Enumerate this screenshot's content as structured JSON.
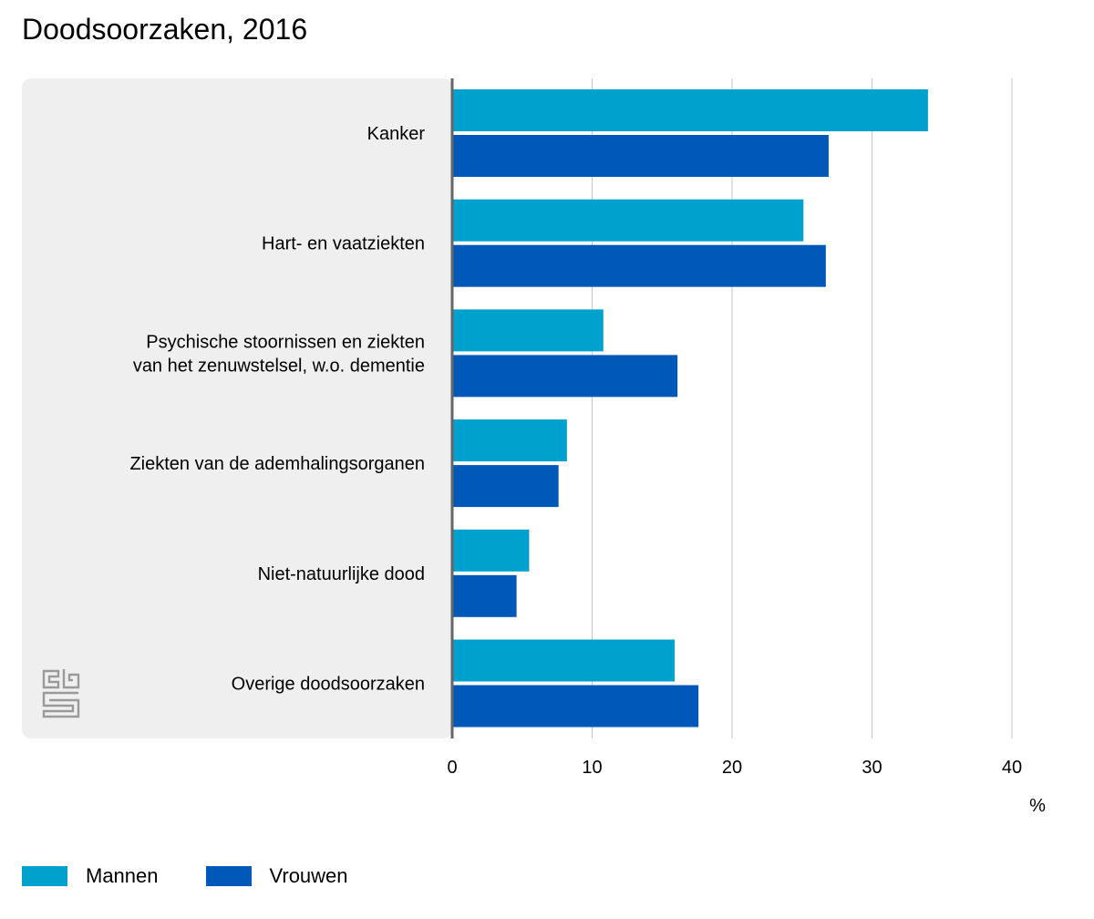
{
  "chart_data": {
    "type": "bar",
    "orientation": "horizontal",
    "title": "Doodsoorzaken, 2016",
    "xlabel": "%",
    "ylabel": "",
    "xlim": [
      0,
      40
    ],
    "xticks": [
      0,
      10,
      20,
      30,
      40
    ],
    "grid": true,
    "legend_position": "bottom-left",
    "categories": [
      "Kanker",
      "Hart- en vaatziekten",
      "Psychische stoornissen en ziekten van het zenuwstelsel, w.o. dementie",
      "Ziekten van de ademhalingsorganen",
      "Niet-natuurlijke dood",
      "Overige doodsoorzaken"
    ],
    "category_lines": [
      [
        "Kanker"
      ],
      [
        "Hart- en vaatziekten"
      ],
      [
        "Psychische stoornissen en ziekten",
        "van het zenuwstelsel, w.o. dementie"
      ],
      [
        "Ziekten van de ademhalingsorganen"
      ],
      [
        "Niet-natuurlijke dood"
      ],
      [
        "Overige doodsoorzaken"
      ]
    ],
    "series": [
      {
        "name": "Mannen",
        "color": "#00a1cd",
        "values": [
          34.0,
          25.1,
          10.8,
          8.2,
          5.5,
          15.9
        ]
      },
      {
        "name": "Vrouwen",
        "color": "#0058b8",
        "values": [
          26.9,
          26.7,
          16.1,
          7.6,
          4.6,
          17.6
        ]
      }
    ]
  },
  "logo": {
    "icon": "cbs-logo-icon"
  }
}
